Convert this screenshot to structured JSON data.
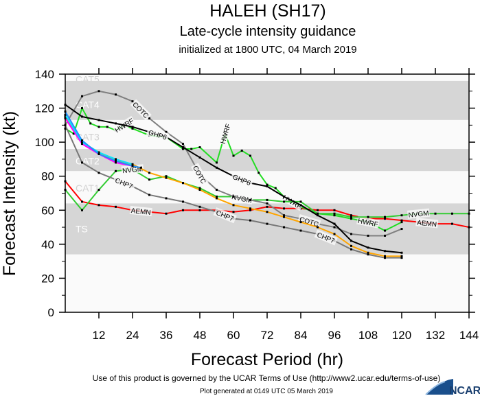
{
  "chart_data": {
    "type": "line",
    "title": "HALEH (SH17)",
    "subtitle": "Late-cycle intensity guidance",
    "initialized": "initialized at 1800 UTC, 04 March 2019",
    "xlabel": "Forecast Period (hr)",
    "ylabel": "Forecast Intensity (kt)",
    "xlim": [
      0,
      144
    ],
    "ylim": [
      0,
      140
    ],
    "xticks": [
      12,
      24,
      36,
      48,
      60,
      72,
      84,
      96,
      108,
      120,
      132,
      144
    ],
    "yticks": [
      0,
      20,
      40,
      60,
      80,
      100,
      120,
      140
    ],
    "grid": false,
    "bands": [
      {
        "label": "CAT5",
        "from": 136,
        "to": 140,
        "fill": "#fafafa"
      },
      {
        "label": "CAT4",
        "from": 113,
        "to": 136,
        "fill": "#d6d6d6"
      },
      {
        "label": "CAT3",
        "from": 96,
        "to": 113,
        "fill": "#fafafa"
      },
      {
        "label": "CAT2",
        "from": 83,
        "to": 96,
        "fill": "#d6d6d6"
      },
      {
        "label": "CAT1",
        "from": 64,
        "to": 83,
        "fill": "#fafafa"
      },
      {
        "label": "TS",
        "from": 34,
        "to": 64,
        "fill": "#d6d6d6"
      },
      {
        "label": "",
        "from": 0,
        "to": 34,
        "fill": "#fafafa"
      }
    ],
    "series": [
      {
        "name": "AEMN",
        "color": "#ff0000",
        "x": [
          0,
          6,
          12,
          18,
          24,
          30,
          36,
          42,
          48,
          54,
          60,
          66,
          72,
          78,
          84,
          90,
          96,
          102,
          108,
          114,
          120,
          126,
          132,
          138,
          144
        ],
        "y": [
          77,
          65,
          63,
          62,
          60,
          59,
          58,
          60,
          60,
          60,
          59,
          60,
          62,
          61,
          61,
          60,
          60,
          57,
          55,
          55,
          54,
          53,
          52,
          52,
          50
        ]
      },
      {
        "name": "HWRF",
        "color": "#22dd22",
        "x": [
          0,
          3,
          6,
          9,
          12,
          15,
          18,
          21,
          24,
          30,
          36,
          42,
          45,
          48,
          54,
          57,
          60,
          63,
          66,
          69,
          72,
          75,
          78,
          84,
          90,
          96,
          102,
          108,
          114,
          120
        ],
        "y": [
          108,
          105,
          120,
          111,
          109,
          109,
          107,
          110,
          108,
          104,
          103,
          96,
          96,
          97,
          88,
          105,
          92,
          95,
          92,
          82,
          75,
          73,
          68,
          62,
          58,
          57,
          55,
          53,
          48,
          53
        ]
      },
      {
        "name": "NVGM",
        "color": "#33cc33",
        "x": [
          0,
          6,
          12,
          18,
          24,
          30,
          36,
          42,
          48,
          54,
          60,
          66,
          72,
          78,
          84,
          90,
          96,
          102,
          108,
          114,
          120,
          126,
          132,
          138,
          144
        ],
        "y": [
          72,
          60,
          72,
          83,
          84,
          78,
          80,
          76,
          73,
          68,
          68,
          66,
          66,
          65,
          65,
          58,
          58,
          56,
          56,
          56,
          57,
          58,
          58,
          58,
          58
        ]
      },
      {
        "name": "COTC",
        "color": "#808080",
        "x": [
          0,
          6,
          12,
          18,
          24,
          30,
          36,
          42,
          48,
          54,
          60,
          66,
          72,
          78,
          84,
          90,
          96,
          102,
          108,
          114,
          120
        ],
        "y": [
          110,
          127,
          130,
          128,
          124,
          114,
          106,
          99,
          81,
          72,
          68,
          66,
          64,
          57,
          55,
          52,
          50,
          46,
          45,
          45,
          49
        ]
      },
      {
        "name": "GHP6",
        "color": "#000000",
        "x": [
          0,
          6,
          12,
          18,
          24,
          30,
          36,
          42,
          48,
          54,
          60,
          66,
          72,
          78,
          84,
          90,
          96,
          102,
          108,
          114,
          120
        ],
        "y": [
          122,
          115,
          113,
          111,
          109,
          106,
          103,
          97,
          91,
          85,
          80,
          76,
          74,
          68,
          63,
          57,
          52,
          42,
          38,
          36,
          35
        ]
      },
      {
        "name": "CHP7",
        "color": "#777777",
        "x": [
          0,
          6,
          12,
          18,
          24,
          30,
          36,
          42,
          48,
          54,
          60,
          66,
          72,
          78,
          84,
          90,
          96,
          102,
          108,
          114,
          120
        ],
        "y": [
          110,
          88,
          82,
          78,
          74,
          69,
          67,
          65,
          62,
          59,
          55,
          54,
          52,
          50,
          48,
          46,
          42,
          37,
          34,
          32,
          32
        ]
      },
      {
        "color": "#ffa500",
        "x": [
          0,
          6,
          12,
          18,
          24,
          30,
          36,
          42,
          48,
          54,
          60,
          66,
          72,
          78,
          84,
          90,
          96,
          102,
          108,
          114,
          120
        ],
        "y": [
          115,
          100,
          94,
          89,
          87,
          82,
          79,
          76,
          72,
          67,
          63,
          61,
          59,
          56,
          53,
          50,
          46,
          39,
          35,
          33,
          33
        ]
      },
      {
        "color": "#ff00ff",
        "x": [
          0,
          6,
          12,
          18,
          24
        ],
        "y": [
          114,
          99,
          93,
          88,
          86
        ]
      },
      {
        "color": "#00e5ff",
        "x": [
          0,
          6,
          12,
          18,
          24
        ],
        "y": [
          116,
          100,
          94,
          90,
          87
        ]
      },
      {
        "color": "#1e90ff",
        "x": [
          0,
          6,
          12,
          18,
          24,
          27
        ],
        "y": [
          118,
          101,
          93,
          89,
          86,
          85
        ]
      }
    ]
  },
  "footer": {
    "terms": "Use of this product is governed by the UCAR Terms of Use (http://www2.ucar.edu/terms-of-use)",
    "generated": "Plot generated at 0149 UTC   05 March 2019",
    "logo": "NCAR"
  }
}
